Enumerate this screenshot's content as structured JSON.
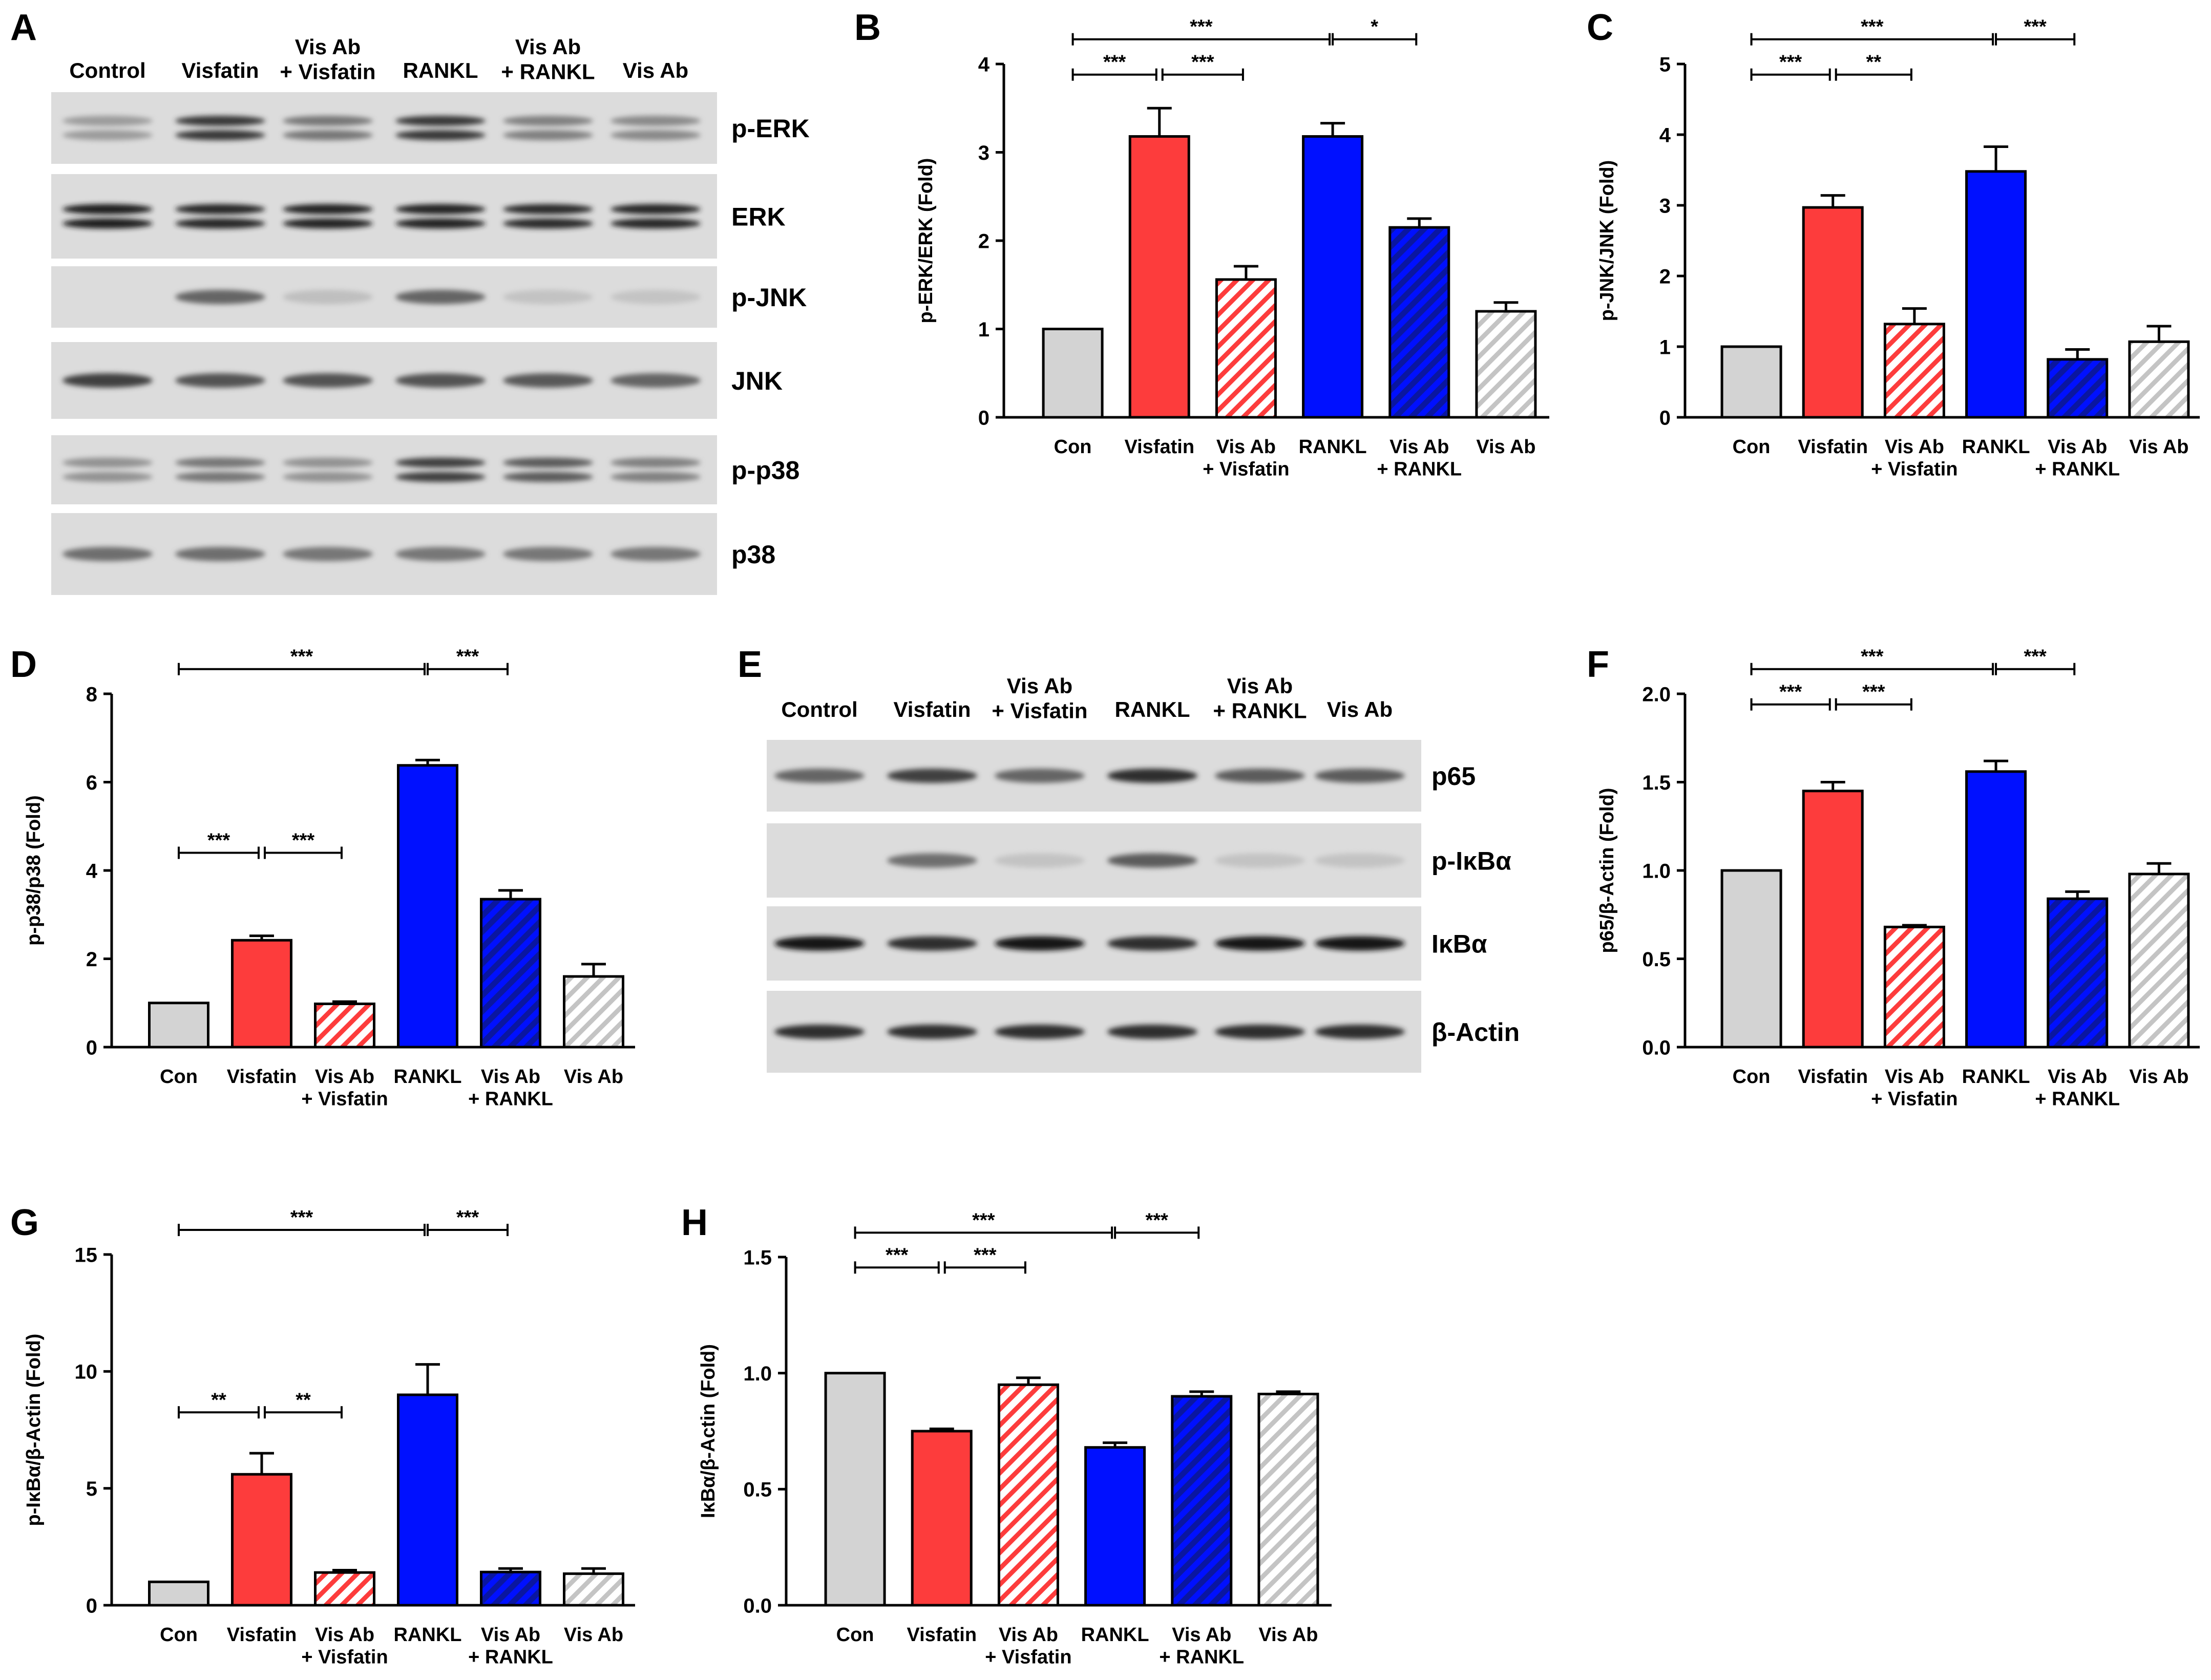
{
  "figure": "Western blot panels and densitometry",
  "colors": {
    "con": "#d3d3d3",
    "visfatin": "#fd3c3c",
    "vis_ab_visfatin": "#fd3c3c",
    "rankl": "#0010ff",
    "vis_ab_rankl": "#0010ff",
    "vis_ab": "#d3d3d3",
    "axis": "#000000"
  },
  "blots": [
    {
      "panel": "A",
      "lanes": [
        "Control",
        "Visfatin",
        "Vis Ab\n+ Visfatin",
        "RANKL",
        "Vis Ab\n+ RANKL",
        "Vis Ab"
      ],
      "rows": [
        {
          "label": "p-ERK",
          "bands": [
            0.25,
            0.8,
            0.45,
            0.8,
            0.4,
            0.35
          ],
          "doublet": true
        },
        {
          "label": "ERK",
          "bands": [
            0.95,
            0.9,
            0.92,
            0.92,
            0.88,
            0.9
          ],
          "doublet": true
        },
        {
          "label": "p-JNK",
          "bands": [
            0.0,
            0.55,
            0.05,
            0.55,
            0.03,
            0.02
          ],
          "doublet": false
        },
        {
          "label": "JNK",
          "bands": [
            0.75,
            0.65,
            0.65,
            0.65,
            0.62,
            0.55
          ],
          "doublet": false
        },
        {
          "label": "p-p38",
          "bands": [
            0.3,
            0.45,
            0.3,
            0.75,
            0.6,
            0.4
          ],
          "doublet": true
        },
        {
          "label": "p38",
          "bands": [
            0.5,
            0.5,
            0.45,
            0.45,
            0.45,
            0.45
          ],
          "doublet": false
        }
      ]
    },
    {
      "panel": "E",
      "lanes": [
        "Control",
        "Visfatin",
        "Vis Ab\n+ Visfatin",
        "RANKL",
        "Vis Ab\n+ RANKL",
        "Vis Ab"
      ],
      "rows": [
        {
          "label": "p65",
          "bands": [
            0.55,
            0.75,
            0.55,
            0.85,
            0.6,
            0.6
          ],
          "doublet": false
        },
        {
          "label": "p-IκBα",
          "bands": [
            0.0,
            0.5,
            0.03,
            0.6,
            0.03,
            0.03
          ],
          "doublet": false
        },
        {
          "label": "IκBα",
          "bands": [
            1.0,
            0.85,
            1.0,
            0.85,
            1.0,
            1.0
          ],
          "doublet": false
        },
        {
          "label": "β-Actin",
          "bands": [
            0.85,
            0.85,
            0.85,
            0.85,
            0.85,
            0.85
          ],
          "doublet": false
        }
      ]
    }
  ],
  "chart_data": [
    {
      "panel": "B",
      "type": "bar",
      "categories": [
        "Con",
        "Visfatin",
        "Vis Ab\n+ Visfatin",
        "RANKL",
        "Vis Ab\n+ RANKL",
        "Vis Ab"
      ],
      "values": [
        1.0,
        3.18,
        1.56,
        3.18,
        2.15,
        1.2
      ],
      "errors": [
        0,
        0.32,
        0.15,
        0.15,
        0.1,
        0.1
      ],
      "ylabel": "p-ERK/ERK  (Fold)",
      "ylim": [
        0,
        4
      ],
      "yticks": [
        "0",
        "1",
        "2",
        "3",
        "4"
      ],
      "significance": [
        {
          "from": 0,
          "to": 3,
          "label": "***",
          "level": 1
        },
        {
          "from": 3,
          "to": 4,
          "label": "*",
          "level": 1
        },
        {
          "from": 0,
          "to": 1,
          "label": "***",
          "level": 2
        },
        {
          "from": 1,
          "to": 2,
          "label": "***",
          "level": 2
        }
      ]
    },
    {
      "panel": "C",
      "type": "bar",
      "categories": [
        "Con",
        "Visfatin",
        "Vis Ab\n+ Visfatin",
        "RANKL",
        "Vis Ab\n+ RANKL",
        "Vis Ab"
      ],
      "values": [
        1.0,
        2.97,
        1.32,
        3.48,
        0.82,
        1.07
      ],
      "errors": [
        0,
        0.17,
        0.22,
        0.35,
        0.14,
        0.22
      ],
      "ylabel": "p-JNK/JNK  (Fold)",
      "ylim": [
        0,
        5
      ],
      "yticks": [
        "0",
        "1",
        "2",
        "3",
        "4",
        "5"
      ],
      "significance": [
        {
          "from": 0,
          "to": 3,
          "label": "***",
          "level": 1
        },
        {
          "from": 3,
          "to": 4,
          "label": "***",
          "level": 1
        },
        {
          "from": 0,
          "to": 1,
          "label": "***",
          "level": 2
        },
        {
          "from": 1,
          "to": 2,
          "label": "**",
          "level": 2
        }
      ]
    },
    {
      "panel": "D",
      "type": "bar",
      "categories": [
        "Con",
        "Visfatin",
        "Vis Ab\n+ Visfatin",
        "RANKL",
        "Vis Ab\n+ RANKL",
        "Vis Ab"
      ],
      "values": [
        1.0,
        2.42,
        0.98,
        6.38,
        3.35,
        1.6
      ],
      "errors": [
        0,
        0.1,
        0.05,
        0.12,
        0.2,
        0.28
      ],
      "ylabel": "p-p38/p38  (Fold)",
      "ylim": [
        0,
        8
      ],
      "yticks": [
        "0",
        "2",
        "4",
        "6",
        "8"
      ],
      "significance": [
        {
          "from": 0,
          "to": 3,
          "label": "***",
          "level": 1
        },
        {
          "from": 3,
          "to": 4,
          "label": "***",
          "level": 1
        },
        {
          "from": 0,
          "to": 1,
          "label": "***",
          "level": 3
        },
        {
          "from": 1,
          "to": 2,
          "label": "***",
          "level": 3
        }
      ]
    },
    {
      "panel": "F",
      "type": "bar",
      "categories": [
        "Con",
        "Visfatin",
        "Vis Ab\n+ Visfatin",
        "RANKL",
        "Vis Ab\n+ RANKL",
        "Vis Ab"
      ],
      "values": [
        1.0,
        1.45,
        0.68,
        1.56,
        0.84,
        0.98
      ],
      "errors": [
        0,
        0.05,
        0.01,
        0.06,
        0.04,
        0.06
      ],
      "ylabel": "p65/β-Actin  (Fold)",
      "ylim": [
        0,
        2
      ],
      "yticks": [
        "0.0",
        "0.5",
        "1.0",
        "1.5",
        "2.0"
      ],
      "significance": [
        {
          "from": 0,
          "to": 3,
          "label": "***",
          "level": 1
        },
        {
          "from": 3,
          "to": 4,
          "label": "***",
          "level": 1
        },
        {
          "from": 0,
          "to": 1,
          "label": "***",
          "level": 2
        },
        {
          "from": 1,
          "to": 2,
          "label": "***",
          "level": 2
        }
      ]
    },
    {
      "panel": "G",
      "type": "bar",
      "categories": [
        "Con",
        "Visfatin",
        "Vis Ab\n+ Visfatin",
        "RANKL",
        "Vis Ab\n+ RANKL",
        "Vis Ab"
      ],
      "values": [
        1.0,
        5.6,
        1.4,
        9.0,
        1.42,
        1.35
      ],
      "errors": [
        0,
        0.9,
        0.1,
        1.3,
        0.15,
        0.22
      ],
      "ylabel": "p-IκBα/β-Actin  (Fold)",
      "ylim": [
        0,
        15
      ],
      "yticks": [
        "0",
        "5",
        "10",
        "15"
      ],
      "significance": [
        {
          "from": 0,
          "to": 3,
          "label": "***",
          "level": 1
        },
        {
          "from": 3,
          "to": 4,
          "label": "***",
          "level": 1
        },
        {
          "from": 0,
          "to": 1,
          "label": "**",
          "level": 3
        },
        {
          "from": 1,
          "to": 2,
          "label": "**",
          "level": 3
        }
      ]
    },
    {
      "panel": "H",
      "type": "bar",
      "categories": [
        "Con",
        "Visfatin",
        "Vis Ab\n+ Visfatin",
        "RANKL",
        "Vis Ab\n+ RANKL",
        "Vis Ab"
      ],
      "values": [
        1.0,
        0.75,
        0.95,
        0.68,
        0.9,
        0.91
      ],
      "errors": [
        0,
        0.01,
        0.03,
        0.02,
        0.02,
        0.01
      ],
      "ylabel": "IκBα/β-Actin  (Fold)",
      "ylim": [
        0,
        1.5
      ],
      "yticks": [
        "0.0",
        "0.5",
        "1.0",
        "1.5"
      ],
      "significance": [
        {
          "from": 0,
          "to": 3,
          "label": "***",
          "level": 1
        },
        {
          "from": 3,
          "to": 4,
          "label": "***",
          "level": 1
        },
        {
          "from": 0,
          "to": 1,
          "label": "***",
          "level": 2
        },
        {
          "from": 1,
          "to": 2,
          "label": "***",
          "level": 2
        }
      ]
    }
  ]
}
